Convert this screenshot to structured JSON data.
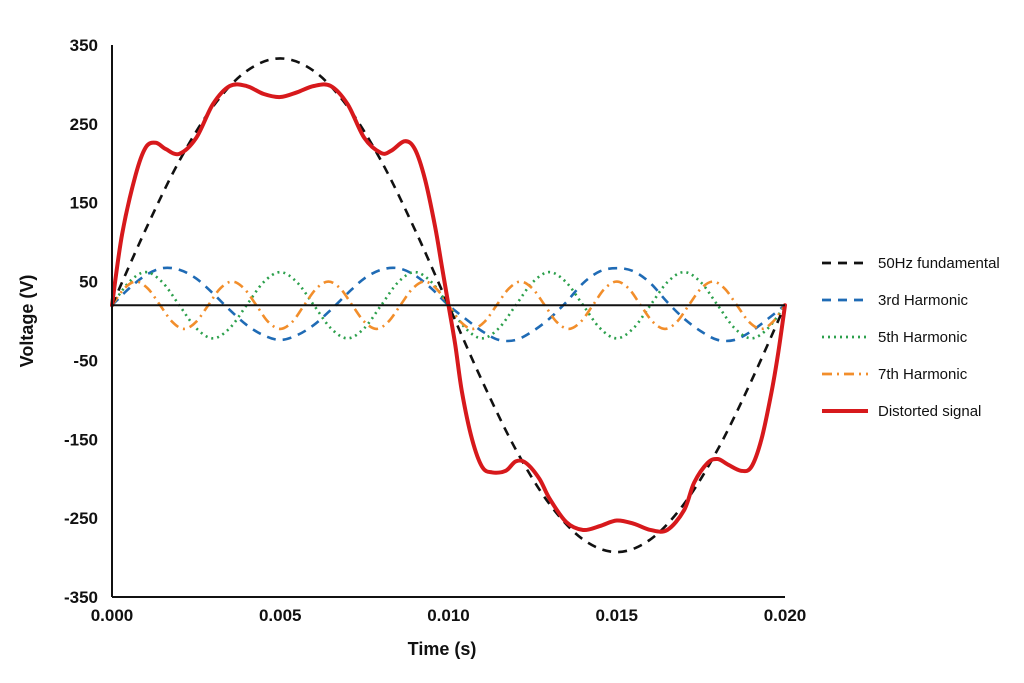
{
  "chart_data": {
    "type": "line",
    "title": "",
    "xlabel": "Time (s)",
    "ylabel": "Voltage (V)",
    "xlim": [
      0,
      0.02
    ],
    "ylim": [
      -350,
      350
    ],
    "x_ticks": [
      "0.000",
      "0.005",
      "0.010",
      "0.015",
      "0.020"
    ],
    "y_ticks": [
      "350",
      "250",
      "150",
      "50",
      "-50",
      "-150",
      "-250",
      "-350"
    ],
    "baseline": 20,
    "grid": false,
    "legend_position": "right",
    "series": [
      {
        "name": "50Hz fundamental",
        "color": "#111111",
        "style": "dashed",
        "x": [
          0,
          0.001,
          0.002,
          0.003,
          0.004,
          0.005,
          0.006,
          0.007,
          0.008,
          0.009,
          0.01,
          0.011,
          0.012,
          0.013,
          0.014,
          0.015,
          0.016,
          0.017,
          0.018,
          0.019,
          0.02
        ],
        "y": [
          20,
          116,
          203,
          272,
          317,
          333,
          317,
          272,
          203,
          116,
          20,
          -76,
          -163,
          -232,
          -277,
          -293,
          -277,
          -232,
          -163,
          -76,
          20
        ]
      },
      {
        "name": "3rd Harmonic",
        "color": "#1f6bb5",
        "style": "dashed",
        "x": [
          0,
          0.0005,
          0.001,
          0.0015,
          0.002,
          0.0025,
          0.003,
          0.0035,
          0.004,
          0.0045,
          0.005,
          0.0055,
          0.006,
          0.0065,
          0.007,
          0.0075,
          0.008,
          0.0085,
          0.009,
          0.0095,
          0.01,
          0.0105,
          0.011,
          0.0115,
          0.012,
          0.0125,
          0.013,
          0.0135,
          0.014,
          0.0145,
          0.015,
          0.0155,
          0.016,
          0.0165,
          0.017,
          0.0175,
          0.018,
          0.0185,
          0.019,
          0.0195,
          0.02
        ],
        "y": [
          20,
          41,
          58,
          67,
          65,
          54,
          35,
          14,
          -5,
          -18,
          -24,
          -18,
          -5,
          14,
          35,
          54,
          65,
          67,
          58,
          41,
          20,
          3,
          -13,
          -24,
          -24,
          -13,
          3,
          24,
          48,
          63,
          67,
          63,
          48,
          24,
          3,
          -13,
          -24,
          -24,
          -13,
          3,
          20
        ]
      },
      {
        "name": "5th Harmonic",
        "color": "#2ca04c",
        "style": "dotted",
        "x": [
          0,
          0.0005,
          0.001,
          0.0015,
          0.002,
          0.0025,
          0.003,
          0.0035,
          0.004,
          0.0045,
          0.005,
          0.0055,
          0.006,
          0.0065,
          0.007,
          0.0075,
          0.008,
          0.0085,
          0.009,
          0.0095,
          0.01,
          0.0105,
          0.011,
          0.0115,
          0.012,
          0.0125,
          0.013,
          0.0135,
          0.014,
          0.0145,
          0.015,
          0.0155,
          0.016,
          0.0165,
          0.017,
          0.0175,
          0.018,
          0.0185,
          0.019,
          0.0195,
          0.02
        ],
        "y": [
          20,
          49,
          62,
          49,
          20,
          -9,
          -22,
          -9,
          20,
          49,
          62,
          49,
          20,
          -9,
          -22,
          -9,
          20,
          49,
          62,
          49,
          20,
          -9,
          -22,
          -9,
          20,
          49,
          62,
          49,
          20,
          -9,
          -22,
          -9,
          20,
          49,
          62,
          49,
          20,
          -9,
          -22,
          -9,
          20
        ]
      },
      {
        "name": "7th Harmonic",
        "color": "#f28e2b",
        "style": "dashdot",
        "x": [
          0,
          0.00036,
          0.00071,
          0.00107,
          0.00143,
          0.00179,
          0.00214,
          0.0025,
          0.00286,
          0.00321,
          0.00357,
          0.00393,
          0.00429,
          0.00464,
          0.005,
          0.00536,
          0.00571,
          0.00607,
          0.00643,
          0.00679,
          0.00714,
          0.0075,
          0.00786,
          0.00821,
          0.00857,
          0.00893,
          0.00929,
          0.00964,
          0.01,
          0.01036,
          0.01071,
          0.01107,
          0.01143,
          0.01179,
          0.01214,
          0.0125,
          0.01286,
          0.01321,
          0.01357,
          0.01393,
          0.01429,
          0.01464,
          0.015,
          0.01536,
          0.01571,
          0.01607,
          0.01643,
          0.01679,
          0.01714,
          0.0175,
          0.01786,
          0.01821,
          0.01857,
          0.01893,
          0.01929,
          0.01964,
          0.02
        ],
        "y": [
          20,
          41,
          50,
          41,
          20,
          -1,
          -10,
          -1,
          20,
          41,
          50,
          41,
          20,
          -1,
          -10,
          -1,
          20,
          41,
          50,
          41,
          20,
          -1,
          -10,
          -1,
          20,
          41,
          50,
          41,
          20,
          -1,
          -10,
          -1,
          20,
          41,
          50,
          41,
          20,
          -1,
          -10,
          -1,
          20,
          41,
          50,
          41,
          20,
          -1,
          -10,
          -1,
          20,
          41,
          50,
          41,
          20,
          -1,
          -10,
          -1,
          20
        ]
      },
      {
        "name": "Distorted signal",
        "color": "#d7191c",
        "style": "solid",
        "x": [
          0,
          0.0003,
          0.0007,
          0.001,
          0.0013,
          0.0016,
          0.002,
          0.0025,
          0.003,
          0.0035,
          0.004,
          0.0045,
          0.005,
          0.0055,
          0.006,
          0.0065,
          0.007,
          0.0075,
          0.008,
          0.0083,
          0.0087,
          0.009,
          0.0093,
          0.0096,
          0.0098,
          0.01,
          0.0102,
          0.0104,
          0.0107,
          0.011,
          0.0113,
          0.0117,
          0.012,
          0.0123,
          0.0127,
          0.013,
          0.0135,
          0.014,
          0.0145,
          0.015,
          0.0155,
          0.016,
          0.0165,
          0.017,
          0.0173,
          0.0177,
          0.018,
          0.0183,
          0.0187,
          0.019,
          0.0193,
          0.0196,
          0.0198,
          0.02
        ],
        "y": [
          20,
          110,
          185,
          220,
          226,
          218,
          212,
          232,
          275,
          298,
          298,
          288,
          284,
          290,
          298,
          298,
          275,
          232,
          213,
          216,
          228,
          218,
          180,
          120,
          70,
          20,
          -30,
          -90,
          -150,
          -185,
          -192,
          -190,
          -178,
          -180,
          -200,
          -225,
          -255,
          -265,
          -260,
          -253,
          -257,
          -265,
          -265,
          -240,
          -205,
          -180,
          -175,
          -182,
          -190,
          -185,
          -150,
          -90,
          -40,
          20
        ]
      }
    ]
  }
}
